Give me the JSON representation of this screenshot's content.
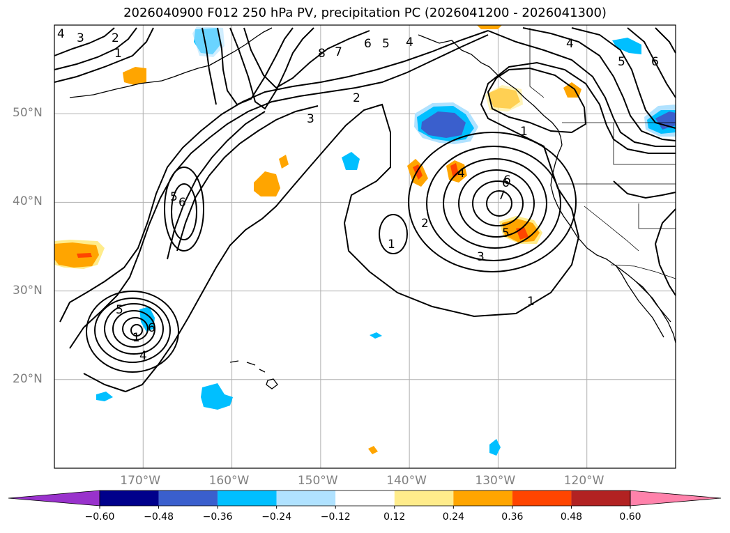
{
  "title": "2026040900 F012 250 hPa PV, precipitation PC (2026041200 - 2026041300)",
  "map": {
    "lon_range": [
      -180,
      -110
    ],
    "lat_range": [
      10,
      60
    ],
    "lat_labels": [
      "50°N",
      "40°N",
      "30°N",
      "20°N"
    ],
    "lat_values": [
      50,
      40,
      30,
      20
    ],
    "lon_labels": [
      "170°W",
      "160°W",
      "150°W",
      "140°W",
      "130°W",
      "120°W"
    ],
    "lon_values": [
      -170,
      -160,
      -150,
      -140,
      -130,
      -120
    ],
    "gridlines": true,
    "contour_labels": [
      "3",
      "2",
      "1",
      "4",
      "8",
      "7",
      "6",
      "5",
      "4",
      "2",
      "3",
      "4",
      "5",
      "6",
      "6",
      "5",
      "6",
      "1",
      "1",
      "2",
      "7",
      "6",
      "5",
      "3",
      "1",
      "5",
      "1",
      "6",
      "4",
      "4"
    ]
  },
  "colorbar": {
    "ticks": [
      "−0.60",
      "−0.48",
      "−0.36",
      "−0.24",
      "−0.12",
      "0.12",
      "0.24",
      "0.36",
      "0.48",
      "0.60"
    ],
    "colors": [
      "#9932cc",
      "#00008b",
      "#3a5fcd",
      "#00bfff",
      "#b0e2ff",
      "#ffffff",
      "#ffec8b",
      "#ffa500",
      "#ff4500",
      "#b22222",
      "#ff82ab"
    ]
  }
}
